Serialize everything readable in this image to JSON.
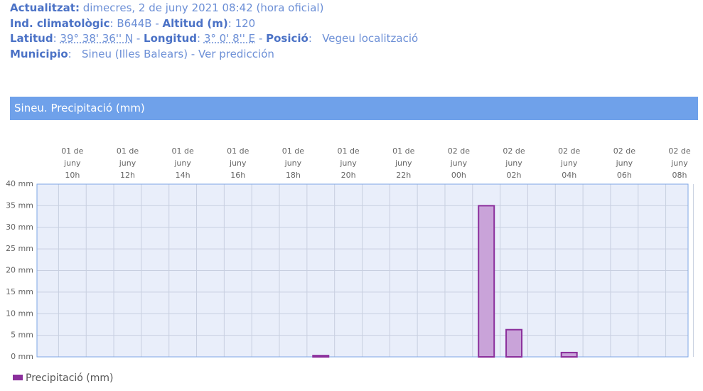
{
  "header": {
    "lines": [
      [
        {
          "text": "Actualitzat:",
          "style": "bold"
        },
        {
          "text": " dimecres, 2 de juny 2021 08:42 (hora oficial)"
        }
      ],
      [
        {
          "text": "Ind. climatològic",
          "style": "bold"
        },
        {
          "text": ": B644B - "
        },
        {
          "text": "Altitud (m)",
          "style": "bold"
        },
        {
          "text": ": 120"
        }
      ],
      [
        {
          "text": "Latitud",
          "style": "bold"
        },
        {
          "text": ": "
        },
        {
          "text": "39° 38' 36'' N",
          "style": "abbr"
        },
        {
          "text": " - "
        },
        {
          "text": "Longitud",
          "style": "bold"
        },
        {
          "text": ": "
        },
        {
          "text": "3° 0' 8'' E",
          "style": "abbr"
        },
        {
          "text": " - "
        },
        {
          "text": "Posició",
          "style": "bold"
        },
        {
          "text": ":   "
        },
        {
          "text": "Vegeu localització",
          "style": "link"
        }
      ],
      [
        {
          "text": "Municipio",
          "style": "bold"
        },
        {
          "text": ":   "
        },
        {
          "text": "Sineu (Illes Balears) - Ver predicción",
          "style": "link"
        }
      ]
    ]
  },
  "chart_data": {
    "type": "bar",
    "title": "Sineu. Precipitació (mm)",
    "categories": [
      null,
      "01 de juny 10h",
      null,
      "01 de juny 12h",
      null,
      "01 de juny 14h",
      null,
      "01 de juny 16h",
      null,
      "01 de juny 18h",
      null,
      "01 de juny 20h",
      null,
      "01 de juny 22h",
      null,
      "02 de juny 00h",
      null,
      "02 de juny 02h",
      null,
      "02 de juny 04h",
      null,
      "02 de juny 06h",
      null,
      "02 de juny 08h"
    ],
    "series": [
      {
        "name": "Precipitació (mm)",
        "color": "#8b2f9c",
        "fill": "#c9a3d9",
        "values": [
          0,
          0,
          0,
          0,
          0,
          0,
          0,
          0,
          0,
          0,
          0.3,
          0,
          0,
          0,
          0,
          0,
          35,
          6.3,
          0,
          1,
          0,
          0,
          0,
          0
        ]
      }
    ],
    "ylim": [
      0,
      40
    ],
    "yticks": [
      {
        "value": 0,
        "label": "0 mm"
      },
      {
        "value": 5,
        "label": "5 mm"
      },
      {
        "value": 10,
        "label": "10 mm"
      },
      {
        "value": 15,
        "label": "15 mm"
      },
      {
        "value": 20,
        "label": "20 mm"
      },
      {
        "value": 25,
        "label": "25 mm"
      },
      {
        "value": 30,
        "label": "30 mm"
      },
      {
        "value": 35,
        "label": "35 mm"
      },
      {
        "value": 40,
        "label": "40 mm"
      }
    ],
    "grid": true,
    "legend": "bottom-left"
  }
}
